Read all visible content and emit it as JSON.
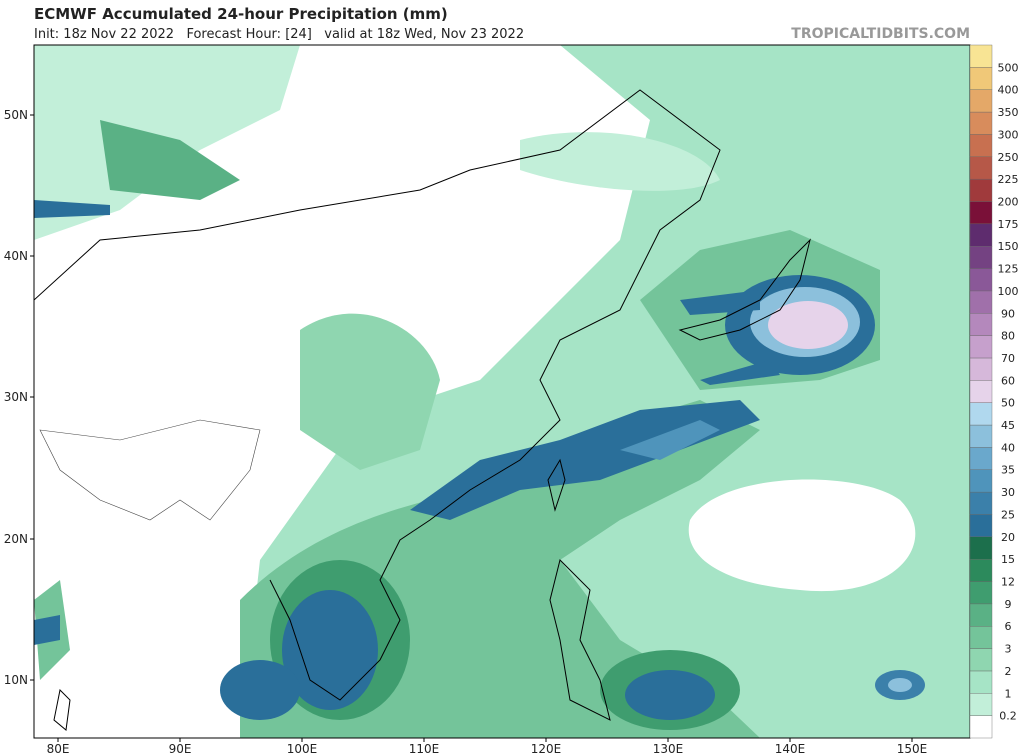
{
  "header": {
    "title": "ECMWF Accumulated 24-hour Precipitation (mm)",
    "subtitle": "Init: 18z Nov 22 2022   Forecast Hour: [24]   valid at 18z Wed, Nov 23 2022",
    "credit": "TROPICALTIDBITS.COM"
  },
  "map": {
    "lat_labels": [
      "50N",
      "40N",
      "30N",
      "20N",
      "10N"
    ],
    "lon_labels": [
      "80E",
      "90E",
      "100E",
      "110E",
      "120E",
      "130E",
      "140E",
      "150E"
    ]
  },
  "colorbar": {
    "levels": [
      0.2,
      1,
      2,
      3,
      6,
      9,
      12,
      15,
      20,
      25,
      30,
      35,
      40,
      45,
      50,
      60,
      70,
      80,
      90,
      100,
      125,
      150,
      175,
      200,
      225,
      250,
      300,
      350,
      400,
      500
    ],
    "colors": [
      "#ffffff",
      "#c2efd9",
      "#a6e4c6",
      "#8fd6b0",
      "#74c49a",
      "#5ab185",
      "#3f9d6f",
      "#2c8a5c",
      "#1c6f4c",
      "#2a6f9a",
      "#3b80aa",
      "#4f94bb",
      "#6aa8cc",
      "#8cc0dc",
      "#b0d8ee",
      "#e6d3ea",
      "#d6b8da",
      "#c6a0cc",
      "#b488bc",
      "#a070aa",
      "#8a5898",
      "#744282",
      "#5e2c6e",
      "#7a1038",
      "#a03a3c",
      "#b65848",
      "#c87050",
      "#d88c5c",
      "#e4a868",
      "#f0c878",
      "#f8e494"
    ]
  }
}
